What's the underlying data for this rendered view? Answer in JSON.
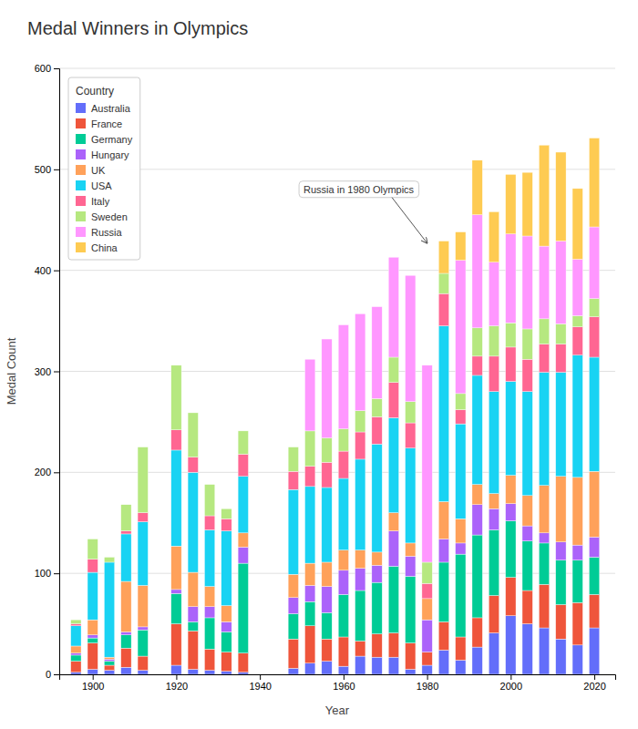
{
  "chart_data": {
    "type": "bar",
    "title": "Medal Winners in Olympics",
    "x_label": "Year",
    "y_label": "Medal Count",
    "legend_title": "Country",
    "stacked": true,
    "grid": true,
    "legend": "upper left",
    "x": [
      1896,
      1900,
      1904,
      1908,
      1912,
      1920,
      1924,
      1928,
      1932,
      1936,
      1948,
      1952,
      1956,
      1960,
      1964,
      1968,
      1972,
      1976,
      1980,
      1984,
      1988,
      1992,
      1996,
      2000,
      2004,
      2008,
      2012,
      2016,
      2020
    ],
    "series": [
      {
        "name": "Australia",
        "color": "#636EFA",
        "values": [
          2,
          5,
          4,
          7,
          4,
          9,
          5,
          4,
          3,
          2,
          6,
          11,
          13,
          8,
          18,
          17,
          17,
          5,
          9,
          24,
          14,
          27,
          41,
          58,
          50,
          46,
          35,
          29,
          46
        ]
      },
      {
        "name": "France",
        "color": "#EF553B",
        "values": [
          11,
          26,
          5,
          19,
          14,
          41,
          38,
          21,
          19,
          19,
          29,
          37,
          22,
          29,
          15,
          23,
          24,
          26,
          13,
          28,
          23,
          29,
          37,
          38,
          33,
          43,
          34,
          42,
          33
        ]
      },
      {
        "name": "Germany",
        "color": "#00CC96",
        "values": [
          6,
          5,
          4,
          13,
          26,
          30,
          9,
          31,
          20,
          89,
          25,
          24,
          26,
          42,
          50,
          51,
          66,
          66,
          0,
          59,
          82,
          82,
          65,
          56,
          49,
          41,
          44,
          42,
          37
        ]
      },
      {
        "name": "Hungary",
        "color": "#AB63FA",
        "values": [
          2,
          3,
          2,
          3,
          3,
          4,
          15,
          11,
          10,
          16,
          16,
          16,
          26,
          24,
          22,
          17,
          35,
          20,
          32,
          23,
          11,
          30,
          21,
          17,
          15,
          10,
          18,
          15,
          20
        ]
      },
      {
        "name": "UK",
        "color": "#FFA15A",
        "values": [
          7,
          15,
          2,
          50,
          41,
          43,
          34,
          20,
          16,
          14,
          23,
          22,
          24,
          20,
          18,
          13,
          18,
          13,
          21,
          37,
          24,
          20,
          15,
          28,
          30,
          47,
          65,
          67,
          65
        ]
      },
      {
        "name": "USA",
        "color": "#19D3F3",
        "values": [
          20,
          47,
          94,
          47,
          63,
          95,
          99,
          56,
          74,
          56,
          84,
          76,
          74,
          71,
          90,
          107,
          94,
          94,
          0,
          174,
          94,
          108,
          101,
          93,
          103,
          112,
          103,
          121,
          113
        ]
      },
      {
        "name": "Italy",
        "color": "#FF6692",
        "values": [
          2,
          13,
          0,
          3,
          9,
          20,
          15,
          14,
          12,
          22,
          18,
          20,
          25,
          27,
          27,
          27,
          35,
          25,
          15,
          32,
          14,
          19,
          35,
          34,
          32,
          28,
          28,
          28,
          40
        ]
      },
      {
        "name": "Sweden",
        "color": "#B6E880",
        "values": [
          4,
          20,
          5,
          26,
          65,
          64,
          44,
          31,
          10,
          23,
          24,
          35,
          24,
          22,
          21,
          18,
          25,
          21,
          21,
          20,
          16,
          28,
          30,
          24,
          30,
          25,
          20,
          11,
          18
        ]
      },
      {
        "name": "Russia",
        "color": "#FF97FF",
        "values": [
          0,
          0,
          0,
          0,
          0,
          0,
          0,
          0,
          0,
          0,
          0,
          71,
          98,
          103,
          96,
          91,
          99,
          125,
          195,
          0,
          132,
          112,
          63,
          88,
          92,
          72,
          82,
          56,
          71
        ]
      },
      {
        "name": "China",
        "color": "#FECB52",
        "values": [
          0,
          0,
          0,
          0,
          0,
          0,
          0,
          0,
          0,
          0,
          0,
          0,
          0,
          0,
          0,
          0,
          0,
          0,
          0,
          32,
          28,
          54,
          50,
          59,
          63,
          100,
          88,
          70,
          88
        ]
      }
    ],
    "xlim": [
      1892,
      2025
    ],
    "ylim": [
      0,
      600
    ],
    "xticks": [
      1900,
      1920,
      1940,
      1960,
      1980,
      2000,
      2020
    ],
    "yticks": [
      0,
      100,
      200,
      300,
      400,
      500,
      600
    ],
    "annotations": [
      {
        "text": "Russia in 1980 Olympics",
        "x": 1980,
        "y": 427
      }
    ]
  }
}
